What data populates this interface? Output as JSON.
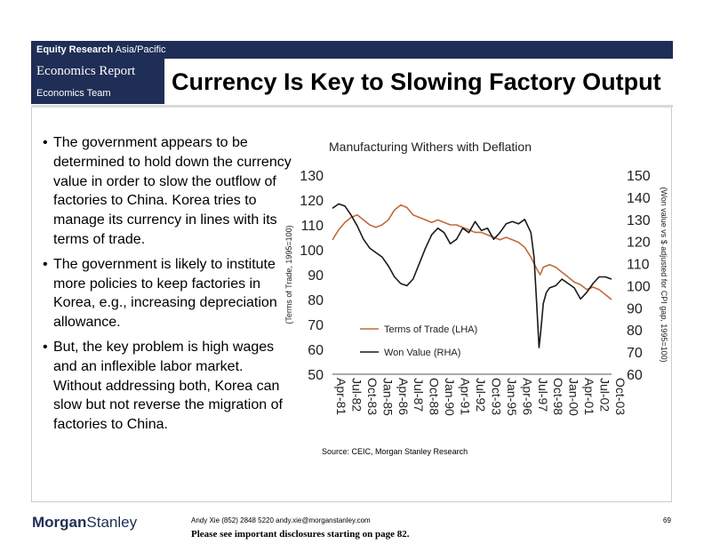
{
  "header": {
    "department": "Equity Research",
    "region": "Asia/Pacific",
    "report_type": "Economics Report",
    "team": "Economics Team",
    "slide_title": "Currency Is Key to Slowing Factory Output"
  },
  "bullets": [
    "The government appears to be determined to hold down the currency value in order to slow the outflow of factories to China. Korea tries to manage its currency in lines with its terms of trade.",
    "The government is likely to institute more policies to keep factories in Korea, e.g., increasing depreciation allowance.",
    "But, the key problem is high wages and an inflexible labor market. Without addressing both, Korea can slow but not reverse the migration of factories to China."
  ],
  "bullet_symbol": "•",
  "chart_data": {
    "type": "line",
    "title": "Manufacturing Withers with Deflation",
    "ylabel_left": "(Terms of Trade, 1995=100)",
    "ylabel_right": "(Won value vs $ adjusted for CPI gap, 1995=100)",
    "ylim_left": [
      50,
      130
    ],
    "ylim_right": [
      60,
      150
    ],
    "yticks_left": [
      50,
      60,
      70,
      80,
      90,
      100,
      110,
      120,
      130
    ],
    "yticks_right": [
      60,
      70,
      80,
      90,
      100,
      110,
      120,
      130,
      140,
      150
    ],
    "x_start": 1981.25,
    "x_end": 2003.75,
    "x_tick_labels": [
      "Apr-81",
      "Jul-82",
      "Oct-83",
      "Jan-85",
      "Apr-86",
      "Jul-87",
      "Oct-88",
      "Jan-90",
      "Apr-91",
      "Jul-92",
      "Oct-93",
      "Jan-95",
      "Apr-96",
      "Jul-97",
      "Oct-98",
      "Jan-00",
      "Apr-01",
      "Jul-02",
      "Oct-03"
    ],
    "x_tick_values": [
      1981.25,
      1982.5,
      1983.75,
      1985.0,
      1986.25,
      1987.5,
      1988.75,
      1990.0,
      1991.25,
      1992.5,
      1993.75,
      1995.0,
      1996.25,
      1997.5,
      1998.75,
      2000.0,
      2001.25,
      2002.5,
      2003.75
    ],
    "series": [
      {
        "name": "Terms of Trade (LHA)",
        "axis": "left",
        "color": "#c26a3a",
        "x": [
          1981.25,
          1981.75,
          1982.25,
          1982.75,
          1983.25,
          1983.75,
          1984.25,
          1984.75,
          1985.25,
          1985.75,
          1986.25,
          1986.75,
          1987.25,
          1987.75,
          1988.25,
          1988.75,
          1989.25,
          1989.75,
          1990.25,
          1990.75,
          1991.25,
          1991.75,
          1992.25,
          1992.75,
          1993.25,
          1993.75,
          1994.25,
          1994.75,
          1995.25,
          1995.75,
          1996.25,
          1996.75,
          1997.25,
          1997.75,
          1998.0,
          1998.25,
          1998.75,
          1999.25,
          1999.75,
          2000.25,
          2000.75,
          2001.25,
          2001.75,
          2002.25,
          2002.75,
          2003.25,
          2003.75
        ],
        "values": [
          104,
          108,
          111,
          113,
          114,
          112,
          110,
          109,
          110,
          112,
          116,
          118,
          117,
          114,
          113,
          112,
          111,
          112,
          111,
          110,
          110,
          109,
          108,
          107,
          107,
          106,
          105,
          104,
          105,
          104,
          103,
          101,
          97,
          92,
          90,
          93,
          94,
          93,
          91,
          89,
          87,
          86,
          84,
          85,
          84,
          82,
          80
        ]
      },
      {
        "name": "Won Value (RHA)",
        "axis": "right",
        "color": "#1a1a1a",
        "x": [
          1981.25,
          1981.75,
          1982.25,
          1982.75,
          1983.25,
          1983.75,
          1984.25,
          1984.75,
          1985.25,
          1985.75,
          1986.25,
          1986.75,
          1987.25,
          1987.75,
          1988.25,
          1988.75,
          1989.25,
          1989.75,
          1990.25,
          1990.75,
          1991.25,
          1991.75,
          1992.25,
          1992.75,
          1993.25,
          1993.75,
          1994.25,
          1994.75,
          1995.25,
          1995.75,
          1996.25,
          1996.75,
          1997.25,
          1997.5,
          1997.75,
          1997.9,
          1998.05,
          1998.25,
          1998.5,
          1998.75,
          1999.25,
          1999.75,
          2000.25,
          2000.75,
          2001.25,
          2001.75,
          2002.25,
          2002.75,
          2003.25,
          2003.75
        ],
        "values": [
          135,
          137,
          136,
          132,
          127,
          121,
          117,
          115,
          113,
          109,
          104,
          101,
          100,
          103,
          110,
          117,
          123,
          126,
          124,
          119,
          121,
          126,
          124,
          129,
          125,
          126,
          121,
          124,
          128,
          129,
          128,
          130,
          124,
          113,
          88,
          72,
          80,
          92,
          97,
          99,
          100,
          103,
          101,
          99,
          94,
          97,
          101,
          104,
          104,
          103
        ]
      }
    ]
  },
  "source": "Source: CEIC, Morgan Stanley Research",
  "footer": {
    "logo_part1": "Morgan",
    "logo_part2": "Stanley",
    "contact": "Andy Xie (852) 2848 5220  andy.xie@morganstanley.com",
    "disclosure": "Please see important disclosures starting on page 82.",
    "page_number": "69"
  }
}
